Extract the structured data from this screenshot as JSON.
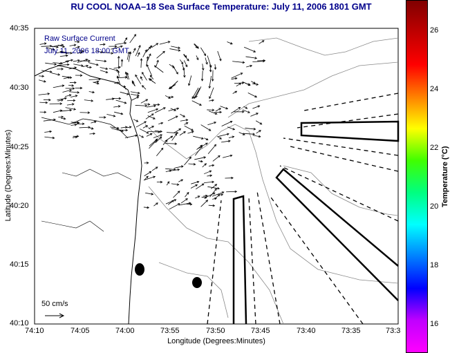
{
  "title": "RU COOL  NOAA–18  Sea Surface Temperature:  July 11, 2006 1801 GMT",
  "legend": {
    "line1": "Raw Surface Current",
    "line2": "July 11, 2006 18:00 GMT"
  },
  "axes": {
    "xlabel": "Longitude (Degrees:Minutes)",
    "ylabel": "Latitude (Degrees:Minutes)",
    "xticks": [
      "74:10",
      "74:05",
      "74:00",
      "73:55",
      "73:50",
      "73:45",
      "73:40",
      "73:35",
      "73:3"
    ],
    "yticks": [
      "40:35",
      "40:30",
      "40:25",
      "40:20",
      "40:15",
      "40:10"
    ]
  },
  "colorbar": {
    "label": "Temperature (°C)",
    "ticks": [
      "26",
      "24",
      "22",
      "20",
      "18",
      "16"
    ],
    "colors": [
      "#ff00ff",
      "#c000ff",
      "#0000ff",
      "#0080ff",
      "#00ffff",
      "#00ff80",
      "#40ff00",
      "#ffff00",
      "#ff8000",
      "#ff0000",
      "#c00000",
      "#800000"
    ]
  },
  "scale": {
    "label": "50 cm/s"
  },
  "colors": {
    "title": "#00008b",
    "land": "#ffffff",
    "contour": "#888888"
  }
}
